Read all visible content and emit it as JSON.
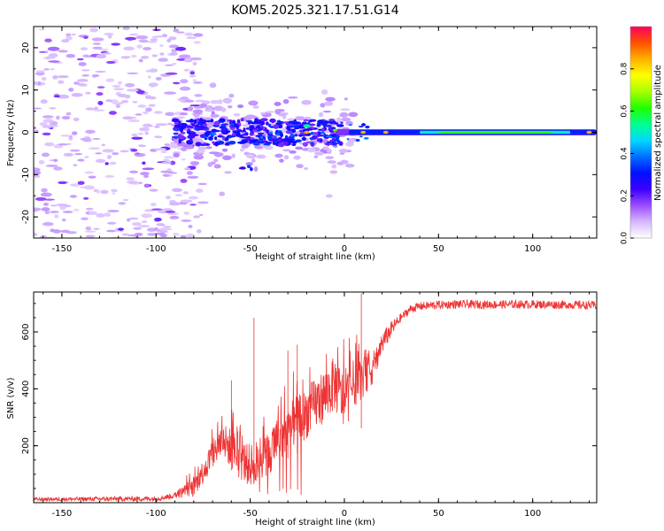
{
  "title": "KOM5.2025.321.17.51.G14",
  "chart_data": [
    {
      "type": "heatmap",
      "xlabel": "Height of straight line (km)",
      "ylabel": "Frequency (Hz)",
      "xlim": [
        -165,
        134
      ],
      "ylim": [
        -25,
        25
      ],
      "xticks": [
        -150,
        -100,
        -50,
        0,
        50,
        100
      ],
      "yticks": [
        -20,
        -10,
        0,
        10,
        20
      ],
      "colorbar": {
        "label": "Normalized spectral amplitude",
        "range": [
          0,
          1
        ],
        "ticks": [
          "0.0",
          "0.2",
          "0.4",
          "0.6",
          "0.8"
        ],
        "stops": [
          "#ffffff",
          "#d6b8ff",
          "#9b4dff",
          "#3c00ff",
          "#0010ff",
          "#0070ff",
          "#00d8ff",
          "#00ff90",
          "#20ff00",
          "#a8ff00",
          "#ffff00",
          "#ffb000",
          "#ff5000",
          "#ff0060"
        ]
      },
      "features": {
        "noise_region_x": [
          -165,
          -90
        ],
        "turbulent_region_x": [
          -90,
          -20
        ],
        "stable_line_x": [
          0,
          134
        ],
        "stable_line_frequency_hz": 0,
        "strong_peak_x": [
          -20,
          10,
          22,
          130
        ]
      }
    },
    {
      "type": "line",
      "xlabel": "Height of straight line (km)",
      "ylabel": "SNR (v/v)",
      "xlim": [
        -165,
        134
      ],
      "ylim": [
        0,
        740
      ],
      "xticks": [
        -150,
        -100,
        -50,
        0,
        50,
        100
      ],
      "yticks": [
        200,
        400,
        600
      ],
      "series": [
        {
          "name": "SNR",
          "color": "#ee3333",
          "envelope_x": [
            -165,
            -100,
            -90,
            -80,
            -75,
            -70,
            -65,
            -60,
            -55,
            -50,
            -45,
            -40,
            -35,
            -30,
            -25,
            -22,
            -18,
            -10,
            -5,
            0,
            5,
            10,
            15,
            20,
            25,
            30,
            35,
            40,
            50,
            60,
            80,
            100,
            120,
            134
          ],
          "envelope_y": [
            12,
            14,
            25,
            55,
            110,
            170,
            220,
            190,
            150,
            130,
            150,
            170,
            220,
            260,
            290,
            300,
            330,
            380,
            420,
            350,
            420,
            440,
            470,
            560,
            610,
            650,
            680,
            690,
            695,
            697,
            696,
            697,
            695,
            693
          ],
          "noise_x": [
            -165,
            -90,
            -80,
            -60,
            -40,
            -20,
            0,
            20,
            30,
            134
          ],
          "noise_y": [
            6,
            10,
            35,
            70,
            80,
            90,
            100,
            40,
            15,
            15
          ],
          "peaks_x": [
            -60,
            -48,
            -30,
            -25,
            9
          ],
          "peaks_y": [
            430,
            650,
            535,
            555,
            735
          ]
        }
      ]
    }
  ]
}
